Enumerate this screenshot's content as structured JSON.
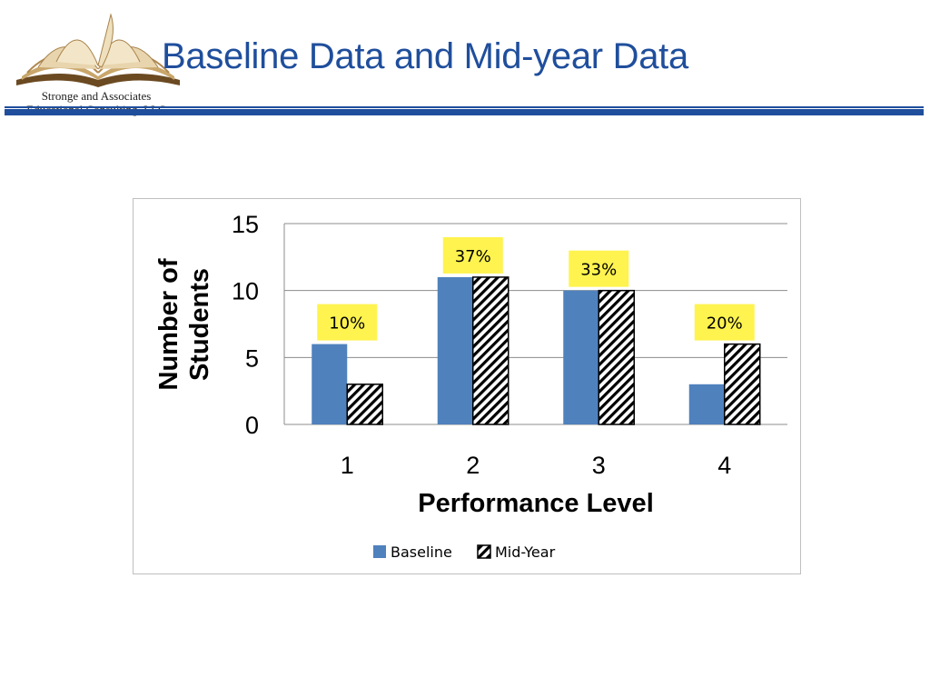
{
  "logo": {
    "line1": "Stronge and Associates",
    "line2": "Educational Consulting, LLC",
    "icon": "open-book-icon"
  },
  "title": "Baseline Data and Mid-year Data",
  "colors": {
    "title": "#1f4e9c",
    "baseline": "#4f81bd",
    "callout": "#fff34f",
    "rule": "#1f4e9c"
  },
  "chart_data": {
    "type": "bar",
    "categories": [
      "1",
      "2",
      "3",
      "4"
    ],
    "series": [
      {
        "name": "Baseline",
        "values": [
          6,
          11,
          10,
          3
        ],
        "fill": "solid-blue"
      },
      {
        "name": "Mid-Year",
        "values": [
          3,
          11,
          10,
          6
        ],
        "fill": "diagonal-hatch"
      }
    ],
    "annotations": [
      "10%",
      "37%",
      "33%",
      "20%"
    ],
    "xlabel": "Performance Level",
    "ylabel": "Number of Students",
    "ylim": [
      0,
      15
    ],
    "yticks": [
      "0",
      "5",
      "10",
      "15"
    ],
    "grid": true,
    "legend": "bottom"
  }
}
